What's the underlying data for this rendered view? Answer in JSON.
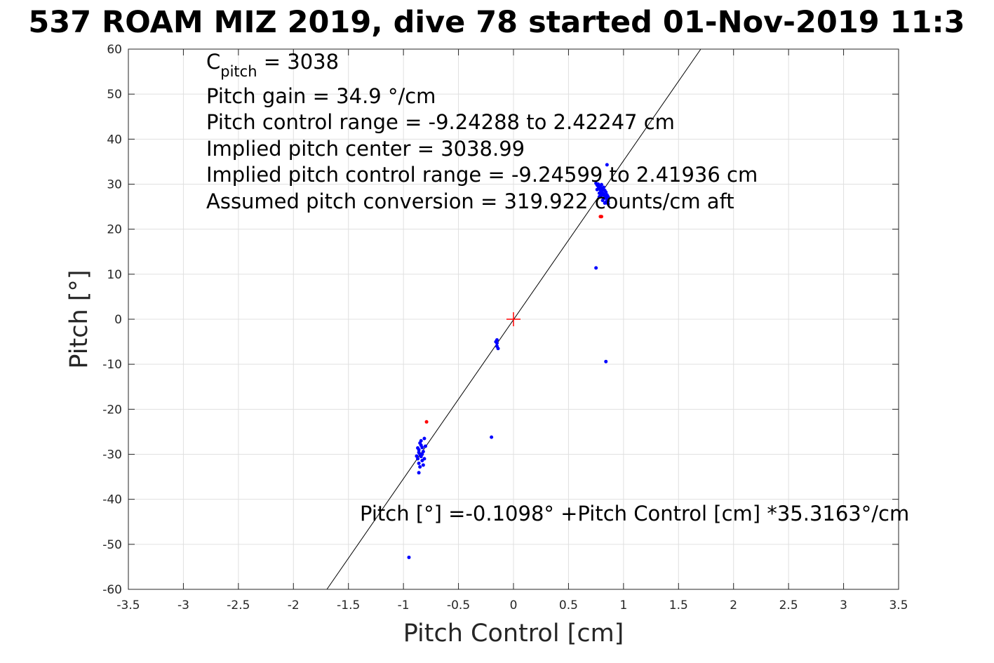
{
  "chart_data": {
    "type": "scatter",
    "title": "537 ROAM MIZ 2019, dive 78 started 01-Nov-2019 11:3",
    "xlabel": "Pitch Control [cm]",
    "ylabel": "Pitch [°]",
    "xlim": [
      -3.5,
      3.5
    ],
    "ylim": [
      -60,
      60
    ],
    "xticks": [
      -3.5,
      -3,
      -2.5,
      -2,
      -1.5,
      -1,
      -0.5,
      0,
      0.5,
      1,
      1.5,
      2,
      2.5,
      3,
      3.5
    ],
    "yticks": [
      60,
      50,
      40,
      30,
      20,
      10,
      0,
      -10,
      -20,
      -30,
      -40,
      -50,
      -60
    ],
    "grid": true,
    "fit_line": {
      "intercept": -0.1098,
      "slope": 35.3163,
      "color": "#000000"
    },
    "center_marker": {
      "x": 0,
      "y": 0,
      "color": "#ff0000"
    },
    "series": [
      {
        "color": "#0000ff",
        "points": [
          [
            0.75,
            30.2
          ],
          [
            0.76,
            29.8
          ],
          [
            0.77,
            29.5
          ],
          [
            0.78,
            29.1
          ],
          [
            0.79,
            28.7
          ],
          [
            0.8,
            28.4
          ],
          [
            0.81,
            28.0
          ],
          [
            0.82,
            27.7
          ],
          [
            0.83,
            27.3
          ],
          [
            0.84,
            27.0
          ],
          [
            0.85,
            26.6
          ],
          [
            0.86,
            26.2
          ],
          [
            0.76,
            28.8
          ],
          [
            0.78,
            28.0
          ],
          [
            0.8,
            27.5
          ],
          [
            0.82,
            26.8
          ],
          [
            0.84,
            26.0
          ],
          [
            0.86,
            25.6
          ],
          [
            0.77,
            30.0
          ],
          [
            0.79,
            29.4
          ],
          [
            0.81,
            29.0
          ],
          [
            0.83,
            28.6
          ],
          [
            0.85,
            27.6
          ],
          [
            0.8,
            29.9
          ],
          [
            0.82,
            29.3
          ],
          [
            0.84,
            28.2
          ],
          [
            0.86,
            27.2
          ],
          [
            0.78,
            27.2
          ],
          [
            0.81,
            26.4
          ],
          [
            0.83,
            25.8
          ],
          [
            0.85,
            34.3
          ],
          [
            0.75,
            11.4
          ],
          [
            0.84,
            -9.4
          ],
          [
            -0.15,
            -4.6
          ],
          [
            -0.15,
            -5.3
          ],
          [
            -0.15,
            -6.0
          ],
          [
            -0.14,
            -6.5
          ],
          [
            -0.16,
            -5.0
          ],
          [
            -0.2,
            -26.2
          ],
          [
            -0.85,
            -27.5
          ],
          [
            -0.84,
            -28.0
          ],
          [
            -0.83,
            -28.5
          ],
          [
            -0.86,
            -29.0
          ],
          [
            -0.82,
            -29.4
          ],
          [
            -0.85,
            -30.0
          ],
          [
            -0.84,
            -30.5
          ],
          [
            -0.87,
            -31.0
          ],
          [
            -0.83,
            -31.4
          ],
          [
            -0.86,
            -32.0
          ],
          [
            -0.82,
            -32.4
          ],
          [
            -0.85,
            -32.8
          ],
          [
            -0.84,
            -27.0
          ],
          [
            -0.81,
            -26.5
          ],
          [
            -0.83,
            -30.0
          ],
          [
            -0.86,
            -29.6
          ],
          [
            -0.81,
            -31.0
          ],
          [
            -0.88,
            -30.4
          ],
          [
            -0.8,
            -28.2
          ],
          [
            -0.87,
            -28.6
          ],
          [
            -0.86,
            -34.1
          ],
          [
            -0.95,
            -52.9
          ]
        ]
      },
      {
        "color": "#ff0000",
        "points": [
          [
            0.79,
            22.8
          ],
          [
            0.8,
            22.8
          ],
          [
            -0.79,
            -22.8
          ]
        ]
      }
    ],
    "annotations": {
      "cpitch_main": "C",
      "cpitch_sub": "pitch",
      "cpitch_value": " = 3038",
      "gain": "Pitch gain = 34.9 °/cm",
      "range": "Pitch control range = -9.24288 to 2.42247 cm",
      "center": "Implied pitch center = 3038.99",
      "implied_range": "Implied pitch control range = -9.24599 to 2.41936 cm",
      "conversion": "Assumed pitch conversion = 319.922 counts/cm aft",
      "fit_equation": "Pitch [°] =-0.1098° +Pitch Control [cm] *35.3163°/cm"
    }
  }
}
